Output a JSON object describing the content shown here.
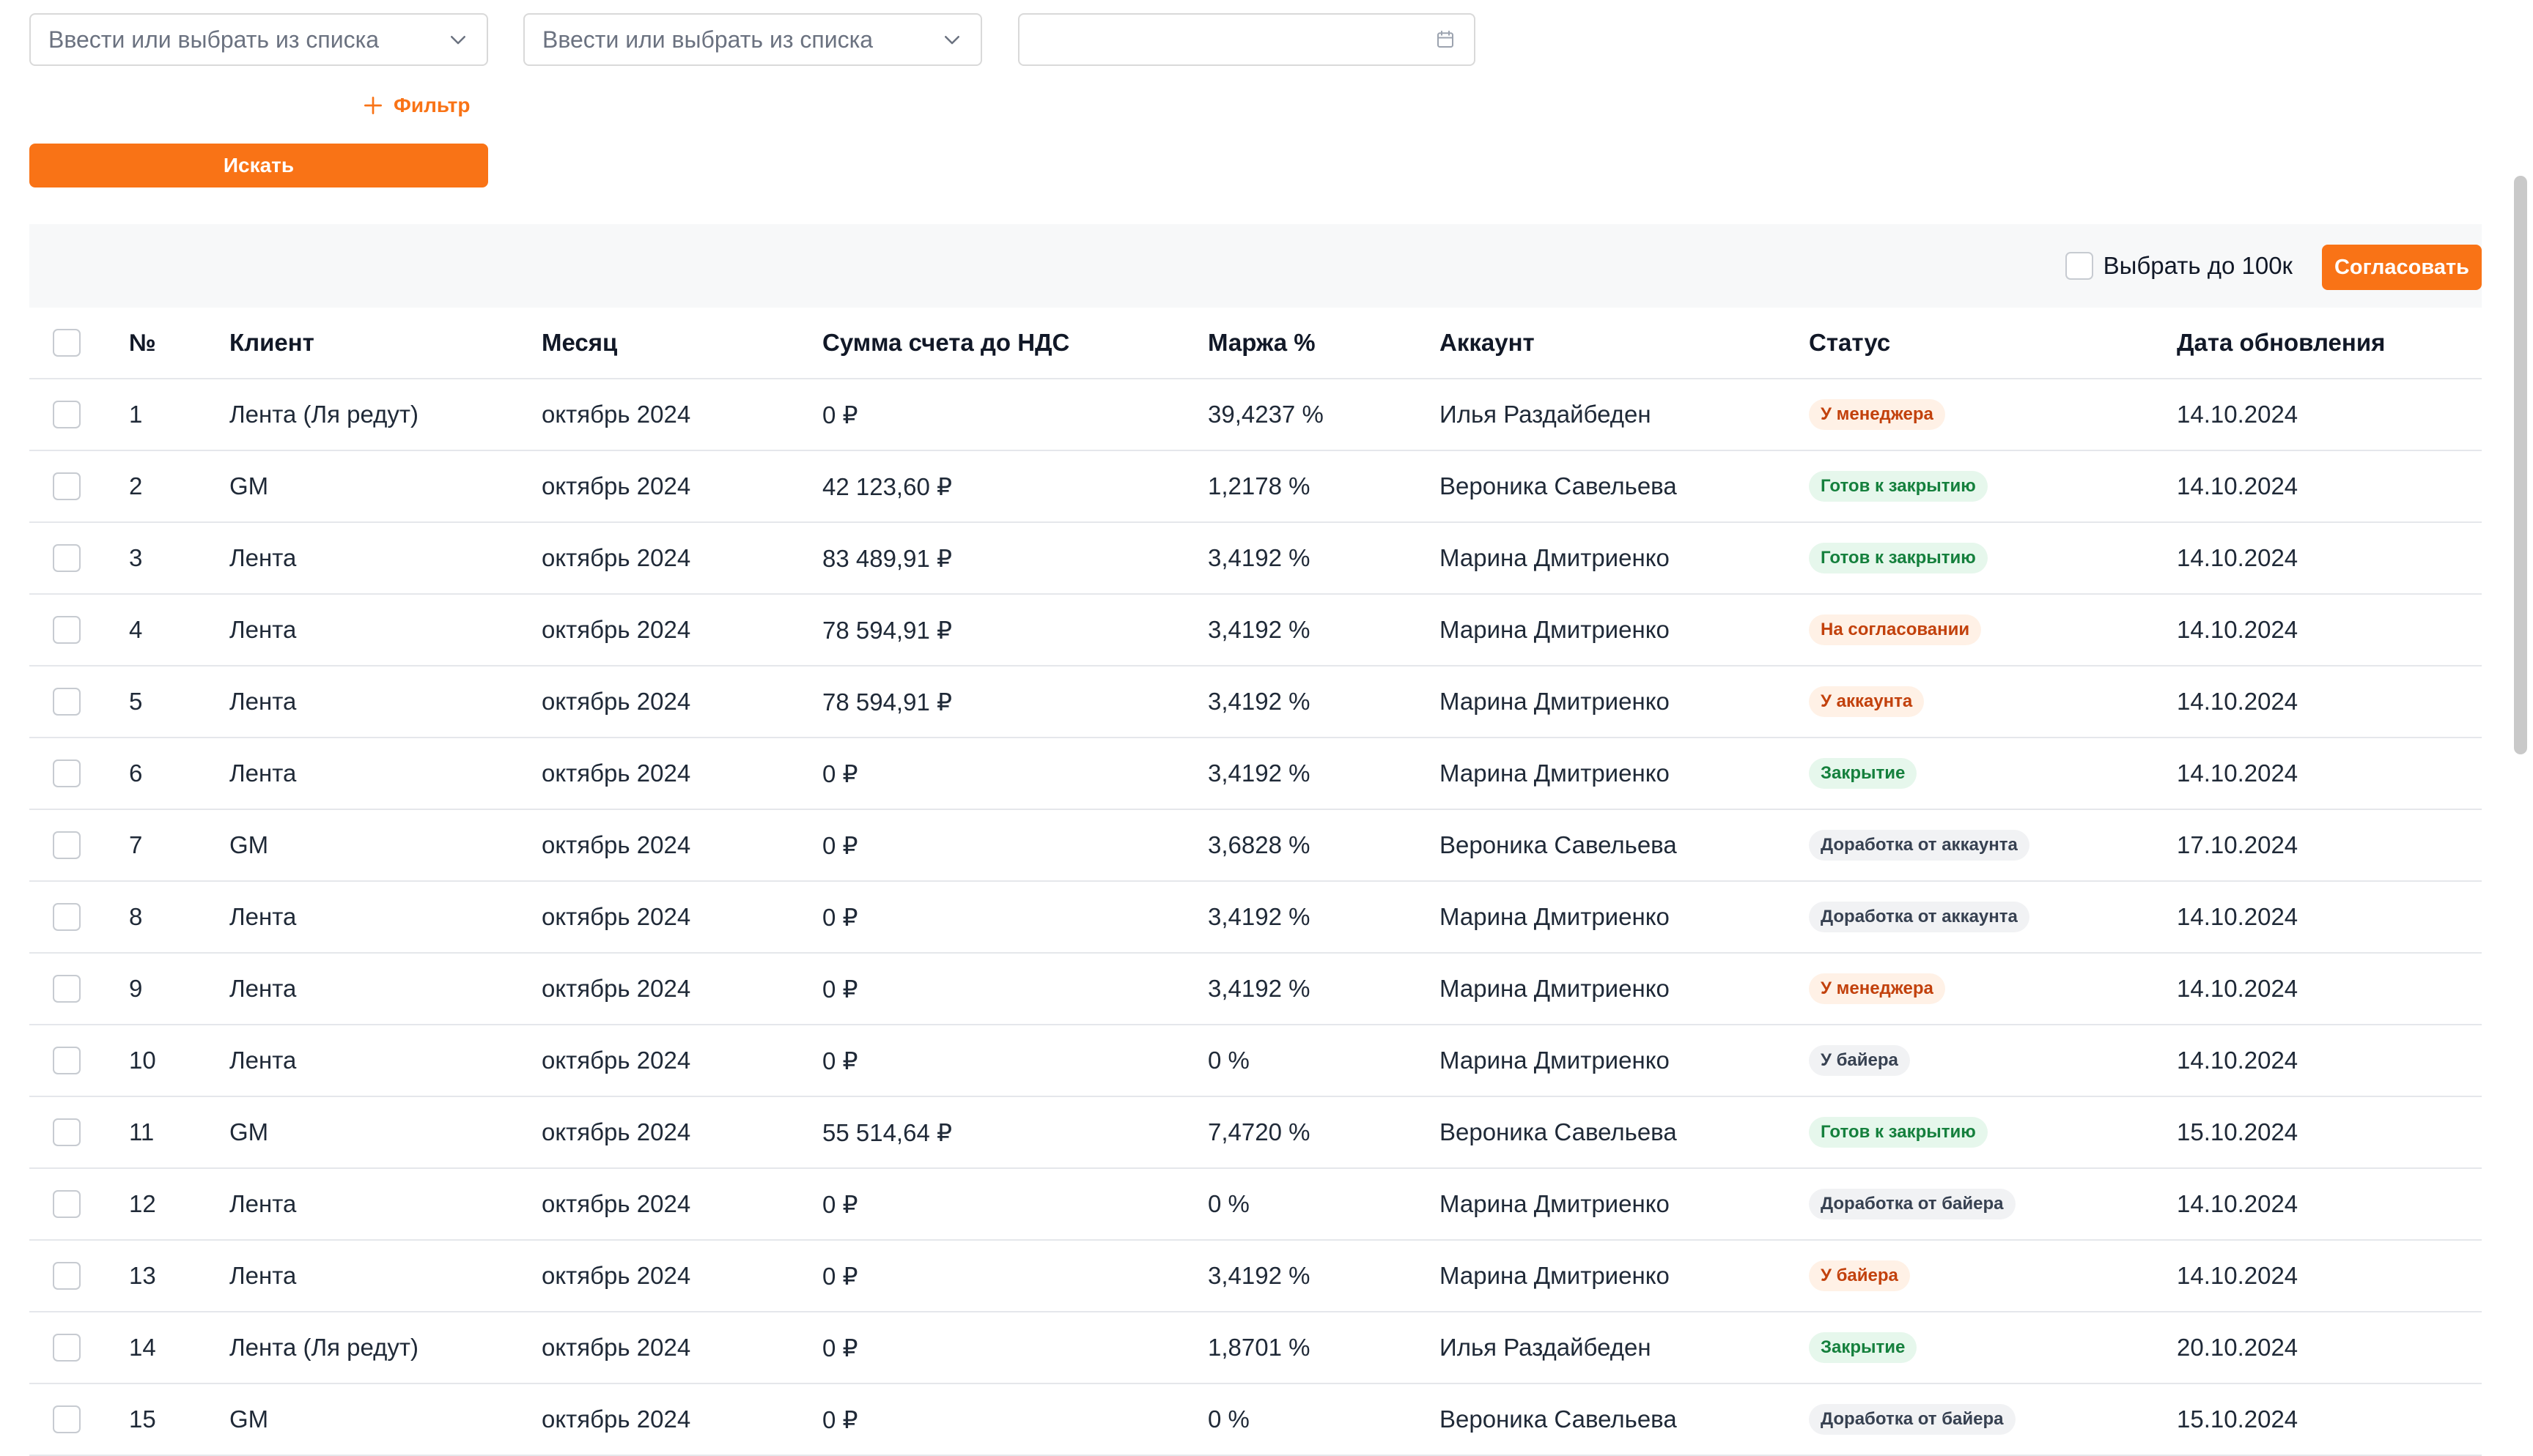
{
  "filters": {
    "select1_placeholder": "Ввести или выбрать из списка",
    "select2_placeholder": "Ввести или выбрать из списка",
    "date_value": "",
    "add_filter_label": "Фильтр",
    "search_label": "Искать"
  },
  "toolbar": {
    "select_100k_label": "Выбрать до 100к",
    "approve_label": "Согласовать"
  },
  "table": {
    "headers": {
      "num": "№",
      "client": "Клиент",
      "month": "Месяц",
      "amount": "Сумма счета до НДС",
      "margin": "Маржа %",
      "account": "Аккаунт",
      "status": "Статус",
      "updated": "Дата обновления"
    },
    "rows": [
      {
        "num": "1",
        "client": "Лента (Ля редут)",
        "month": "октябрь 2024",
        "amount": "0 ₽",
        "margin": "39,4237 %",
        "account": "Илья Раздайбеден",
        "status": "У менеджера",
        "tone": "orange",
        "updated": "14.10.2024"
      },
      {
        "num": "2",
        "client": "GM",
        "month": "октябрь 2024",
        "amount": "42 123,60 ₽",
        "margin": "1,2178 %",
        "account": "Вероника Савельева",
        "status": "Готов к закрытию",
        "tone": "green",
        "updated": "14.10.2024"
      },
      {
        "num": "3",
        "client": "Лента",
        "month": "октябрь 2024",
        "amount": "83 489,91 ₽",
        "margin": "3,4192 %",
        "account": "Марина Дмитриенко",
        "status": "Готов к закрытию",
        "tone": "green",
        "updated": "14.10.2024"
      },
      {
        "num": "4",
        "client": "Лента",
        "month": "октябрь 2024",
        "amount": "78 594,91 ₽",
        "margin": "3,4192 %",
        "account": "Марина Дмитриенко",
        "status": "На согласовании",
        "tone": "orange",
        "updated": "14.10.2024"
      },
      {
        "num": "5",
        "client": "Лента",
        "month": "октябрь 2024",
        "amount": "78 594,91 ₽",
        "margin": "3,4192 %",
        "account": "Марина Дмитриенко",
        "status": "У аккаунта",
        "tone": "orange",
        "updated": "14.10.2024"
      },
      {
        "num": "6",
        "client": "Лента",
        "month": "октябрь 2024",
        "amount": "0 ₽",
        "margin": "3,4192 %",
        "account": "Марина Дмитриенко",
        "status": "Закрытие",
        "tone": "green",
        "updated": "14.10.2024"
      },
      {
        "num": "7",
        "client": "GM",
        "month": "октябрь 2024",
        "amount": "0 ₽",
        "margin": "3,6828 %",
        "account": "Вероника Савельева",
        "status": "Доработка от аккаунта",
        "tone": "gray",
        "updated": "17.10.2024"
      },
      {
        "num": "8",
        "client": "Лента",
        "month": "октябрь 2024",
        "amount": "0 ₽",
        "margin": "3,4192 %",
        "account": "Марина Дмитриенко",
        "status": "Доработка от аккаунта",
        "tone": "gray",
        "updated": "14.10.2024"
      },
      {
        "num": "9",
        "client": "Лента",
        "month": "октябрь 2024",
        "amount": "0 ₽",
        "margin": "3,4192 %",
        "account": "Марина Дмитриенко",
        "status": "У менеджера",
        "tone": "orange",
        "updated": "14.10.2024"
      },
      {
        "num": "10",
        "client": "Лента",
        "month": "октябрь 2024",
        "amount": "0 ₽",
        "margin": "0 %",
        "account": "Марина Дмитриенко",
        "status": "У байера",
        "tone": "gray",
        "updated": "14.10.2024"
      },
      {
        "num": "11",
        "client": "GM",
        "month": "октябрь 2024",
        "amount": "55 514,64 ₽",
        "margin": "7,4720 %",
        "account": "Вероника Савельева",
        "status": "Готов к закрытию",
        "tone": "green",
        "updated": "15.10.2024"
      },
      {
        "num": "12",
        "client": "Лента",
        "month": "октябрь 2024",
        "amount": "0 ₽",
        "margin": "0 %",
        "account": "Марина Дмитриенко",
        "status": "Доработка от байера",
        "tone": "gray",
        "updated": "14.10.2024"
      },
      {
        "num": "13",
        "client": "Лента",
        "month": "октябрь 2024",
        "amount": "0 ₽",
        "margin": "3,4192 %",
        "account": "Марина Дмитриенко",
        "status": "У байера",
        "tone": "orange",
        "updated": "14.10.2024"
      },
      {
        "num": "14",
        "client": "Лента (Ля редут)",
        "month": "октябрь 2024",
        "amount": "0 ₽",
        "margin": "1,8701 %",
        "account": "Илья Раздайбеден",
        "status": "Закрытие",
        "tone": "green",
        "updated": "20.10.2024"
      },
      {
        "num": "15",
        "client": "GM",
        "month": "октябрь 2024",
        "amount": "0 ₽",
        "margin": "0 %",
        "account": "Вероника Савельева",
        "status": "Доработка от байера",
        "tone": "gray",
        "updated": "15.10.2024"
      }
    ]
  },
  "icons": {
    "select_chevron": "chevron-down-icon",
    "date_picker": "calendar-icon",
    "add_filter": "plus-icon"
  },
  "colors": {
    "accent": "#f97316",
    "badge_orange_bg": "#fff1e6",
    "badge_orange_text": "#c2410c",
    "badge_green_bg": "#e6f7ec",
    "badge_green_text": "#15803d",
    "badge_gray_bg": "#f1f2f4",
    "badge_gray_text": "#374151"
  }
}
